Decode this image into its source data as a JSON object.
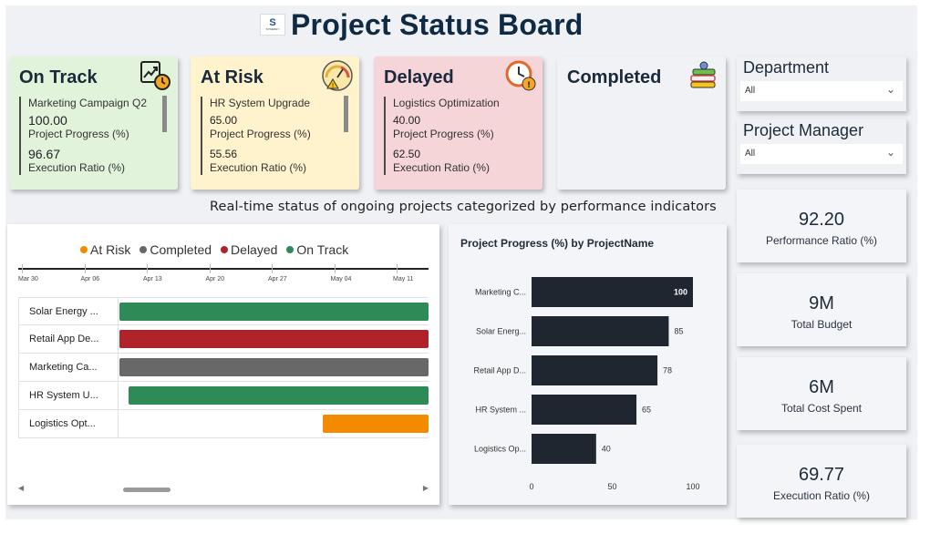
{
  "header": {
    "title": "Project Status Board",
    "logo_letter": "S",
    "logo_text": "SYNERGY"
  },
  "cards": [
    {
      "title": "On Track",
      "icon": "chart-clock-icon",
      "project": "Marketing Campaign Q2",
      "progress": "100.00",
      "progress_label": "Project Progress (%)",
      "execution": "96.67",
      "execution_label": "Execution Ratio (%)",
      "bg": "#e2f3dc"
    },
    {
      "title": "At Risk",
      "icon": "gauge-warning-icon",
      "project": "HR System Upgrade",
      "progress": "65.00",
      "progress_label": "Project Progress (%)",
      "execution": "55.56",
      "execution_label": "Execution Ratio (%)",
      "bg": "#fff3cd"
    },
    {
      "title": "Delayed",
      "icon": "clock-warning-icon",
      "project": "Logistics Optimization",
      "progress": "40.00",
      "progress_label": "Project Progress (%)",
      "execution": "62.50",
      "execution_label": "Execution Ratio (%)",
      "bg": "#f6d5d9"
    },
    {
      "title": "Completed",
      "icon": "stacked-blocks-icon",
      "bg": "#f1f2f6"
    }
  ],
  "subtitle": "Real-time status of ongoing projects categorized by performance indicators",
  "slicers": [
    {
      "title": "Department",
      "value": "All"
    },
    {
      "title": "Project Manager",
      "value": "All"
    }
  ],
  "kpis": [
    {
      "value": "92.20",
      "label": "Performance Ratio (%)"
    },
    {
      "value": "9M",
      "label": "Total Budget"
    },
    {
      "value": "6M",
      "label": "Total Cost Spent"
    },
    {
      "value": "69.77",
      "label": "Execution Ratio (%)"
    }
  ],
  "colors": {
    "at_risk": "#f28b00",
    "completed": "#686868",
    "delayed": "#b1232a",
    "on_track": "#2e8b57",
    "bar": "#1f2630"
  },
  "gantt": {
    "legend": [
      {
        "label": "At Risk",
        "color": "#f28b00"
      },
      {
        "label": "Completed",
        "color": "#686868"
      },
      {
        "label": "Delayed",
        "color": "#b1232a"
      },
      {
        "label": "On Track",
        "color": "#2e8b57"
      }
    ],
    "timeline": [
      "Mar 30",
      "Apr 06",
      "Apr 13",
      "Apr 20",
      "Apr 27",
      "May 04",
      "May 11"
    ],
    "rows": [
      {
        "name": "Solar Energy ...",
        "status": "On Track",
        "start": "Apr 10",
        "end": "beyond view"
      },
      {
        "name": "Retail App De...",
        "status": "Delayed",
        "start": "Apr 10",
        "end": "beyond view"
      },
      {
        "name": "Marketing Ca...",
        "status": "Completed",
        "start": "Apr 10",
        "end": "beyond view"
      },
      {
        "name": "HR System U...",
        "status": "On Track",
        "start": "Apr 11",
        "end": "beyond view"
      },
      {
        "name": "Logistics Opt...",
        "status": "At Risk",
        "start": "May 03",
        "end": "beyond view"
      }
    ]
  },
  "chart_data": {
    "type": "bar",
    "orientation": "horizontal",
    "title": "Project Progress (%) by ProjectName",
    "categories": [
      "Marketing C...",
      "Solar Energ...",
      "Retail App D...",
      "HR System ...",
      "Logistics Op..."
    ],
    "values": [
      100,
      85,
      78,
      65,
      40
    ],
    "data_labels": [
      "100",
      "85",
      "78",
      "65",
      "40"
    ],
    "xlim": [
      0,
      100
    ],
    "xticks": [
      "0",
      "50",
      "100"
    ],
    "grid": false
  }
}
